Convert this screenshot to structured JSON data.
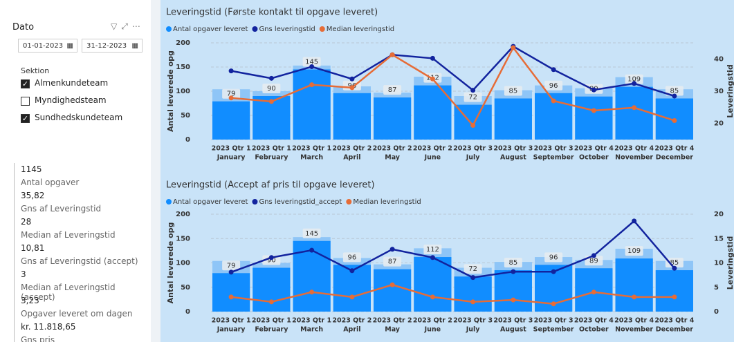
{
  "slicer": {
    "title": "Dato",
    "start": "01-01-2023",
    "end": "31-12-2023"
  },
  "section": {
    "title": "Sektion",
    "options": [
      {
        "label": "Almenkundeteam",
        "checked": true
      },
      {
        "label": "Myndighedsteam",
        "checked": false
      },
      {
        "label": "Sundhedskundeteam",
        "checked": true
      }
    ]
  },
  "cards": [
    {
      "value": "1145",
      "label": "Antal opgaver"
    },
    {
      "value": "35,82",
      "label": "Gns af Leveringstid"
    },
    {
      "value": "28",
      "label": "Median af Leveringstid"
    },
    {
      "value": "10,81",
      "label": "Gns af Leveringstid (accept)"
    },
    {
      "value": "3",
      "label": "Median af Leveringstid (accept)"
    },
    {
      "value": "3,23",
      "label": "Opgaver leveret om dagen"
    },
    {
      "value": "kr. 11.818,65",
      "label": "Gns pris"
    }
  ],
  "chart_data": [
    {
      "type": "combo",
      "title": "Leveringstid (Første kontakt til opgave leveret)",
      "y_label": "Antal leverede opg",
      "y2_label": "Leveringstid",
      "categories": [
        "January",
        "February",
        "March",
        "April",
        "May",
        "June",
        "July",
        "August",
        "September",
        "October",
        "November",
        "December"
      ],
      "quarters": [
        "2023 Qtr 1",
        "2023 Qtr 1",
        "2023 Qtr 1",
        "2023 Qtr 2",
        "2023 Qtr 2",
        "2023 Qtr 2",
        "2023 Qtr 3",
        "2023 Qtr 3",
        "2023 Qtr 3",
        "2023 Qtr 4",
        "2023 Qtr 4",
        "2023 Qtr 4"
      ],
      "ylim": [
        0,
        200
      ],
      "yticks": [
        0,
        50,
        100,
        150,
        200
      ],
      "y2lim": [
        15,
        45
      ],
      "y2ticks": [
        20,
        30,
        40
      ],
      "grid": true,
      "series": [
        {
          "name": "Antal opgaver leveret",
          "kind": "bar",
          "color": "#118dff",
          "values": [
            79,
            90,
            145,
            96,
            87,
            112,
            72,
            85,
            96,
            89,
            109,
            85
          ],
          "totals": [
            104,
            100,
            153,
            110,
            97,
            130,
            90,
            102,
            112,
            106,
            129,
            104
          ],
          "totals_color": "#8ec5f7"
        },
        {
          "name": "Gns leveringstid",
          "kind": "line",
          "axis": "y2",
          "color": "#12239e",
          "values": [
            36.3,
            34.0,
            37.6,
            33.8,
            41.3,
            40.2,
            30.3,
            43.9,
            36.7,
            30.4,
            32.4,
            28.5
          ]
        },
        {
          "name": "Median leveringstid",
          "kind": "line",
          "axis": "y2",
          "color": "#e66c37",
          "values": [
            27.9,
            26.8,
            32.0,
            31.1,
            41.3,
            33.8,
            19.4,
            43.5,
            27.0,
            24.0,
            24.9,
            20.9
          ]
        }
      ]
    },
    {
      "type": "combo",
      "title": "Leveringstid (Accept af pris til opgave leveret)",
      "y_label": "Antal leverede opg",
      "y2_label": "Leveringstid",
      "categories": [
        "January",
        "February",
        "March",
        "April",
        "May",
        "June",
        "July",
        "August",
        "September",
        "October",
        "November",
        "December"
      ],
      "quarters": [
        "2023 Qtr 1",
        "2023 Qtr 1",
        "2023 Qtr 1",
        "2023 Qtr 2",
        "2023 Qtr 2",
        "2023 Qtr 2",
        "2023 Qtr 3",
        "2023 Qtr 3",
        "2023 Qtr 3",
        "2023 Qtr 4",
        "2023 Qtr 4",
        "2023 Qtr 4"
      ],
      "ylim": [
        0,
        200
      ],
      "yticks": [
        0,
        50,
        100,
        150,
        200
      ],
      "y2lim": [
        0,
        20
      ],
      "y2ticks": [
        0,
        5,
        10,
        15,
        20
      ],
      "grid": true,
      "series": [
        {
          "name": "Antal opgaver leveret",
          "kind": "bar",
          "color": "#118dff",
          "values": [
            79,
            90,
            145,
            96,
            87,
            112,
            72,
            85,
            96,
            89,
            109,
            85
          ],
          "totals": [
            104,
            100,
            153,
            110,
            97,
            130,
            90,
            102,
            112,
            106,
            129,
            104
          ],
          "totals_color": "#8ec5f7"
        },
        {
          "name": "Gns leveringstid_accept",
          "kind": "line",
          "axis": "y2",
          "color": "#12239e",
          "values": [
            8.1,
            11.1,
            12.6,
            8.4,
            12.8,
            11.1,
            7.0,
            8.2,
            8.2,
            11.5,
            18.6,
            8.9
          ]
        },
        {
          "name": "Median leveringstid",
          "kind": "line",
          "axis": "y2",
          "color": "#e66c37",
          "values": [
            3.0,
            2.0,
            4.0,
            3.0,
            5.5,
            3.0,
            2.0,
            2.4,
            1.6,
            4.0,
            3.0,
            3.0
          ]
        }
      ]
    }
  ]
}
